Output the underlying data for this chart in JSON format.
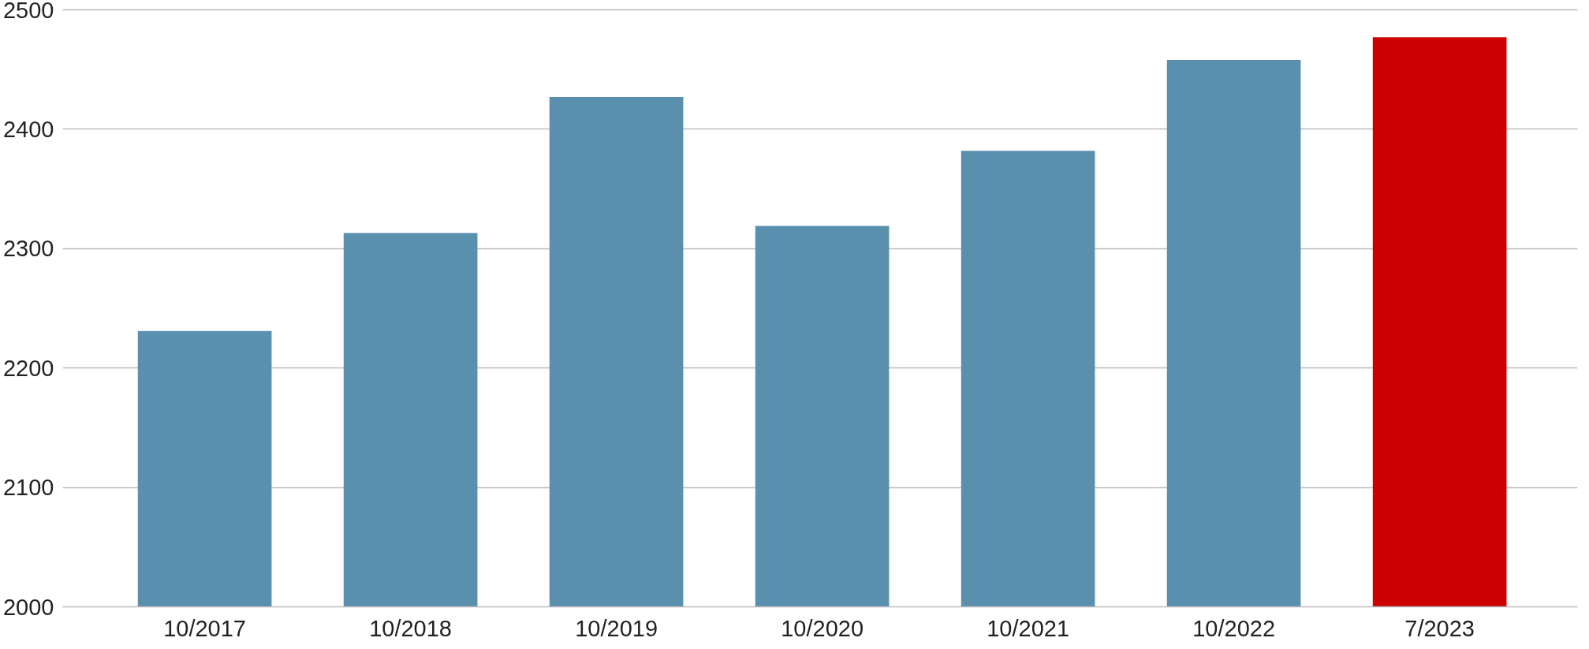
{
  "chart_data": {
    "type": "bar",
    "categories": [
      "10/2017",
      "10/2018",
      "10/2019",
      "10/2020",
      "10/2021",
      "10/2022",
      "7/2023"
    ],
    "values": [
      2231,
      2313,
      2427,
      2319,
      2382,
      2458,
      2477
    ],
    "colors": [
      "#5a8fae",
      "#5a8fae",
      "#5a8fae",
      "#5a8fae",
      "#5a8fae",
      "#5a8fae",
      "#cc0000"
    ],
    "ylim": [
      2000,
      2500
    ],
    "yticks": [
      2000,
      2100,
      2200,
      2300,
      2400,
      2500
    ],
    "grid": "y"
  }
}
